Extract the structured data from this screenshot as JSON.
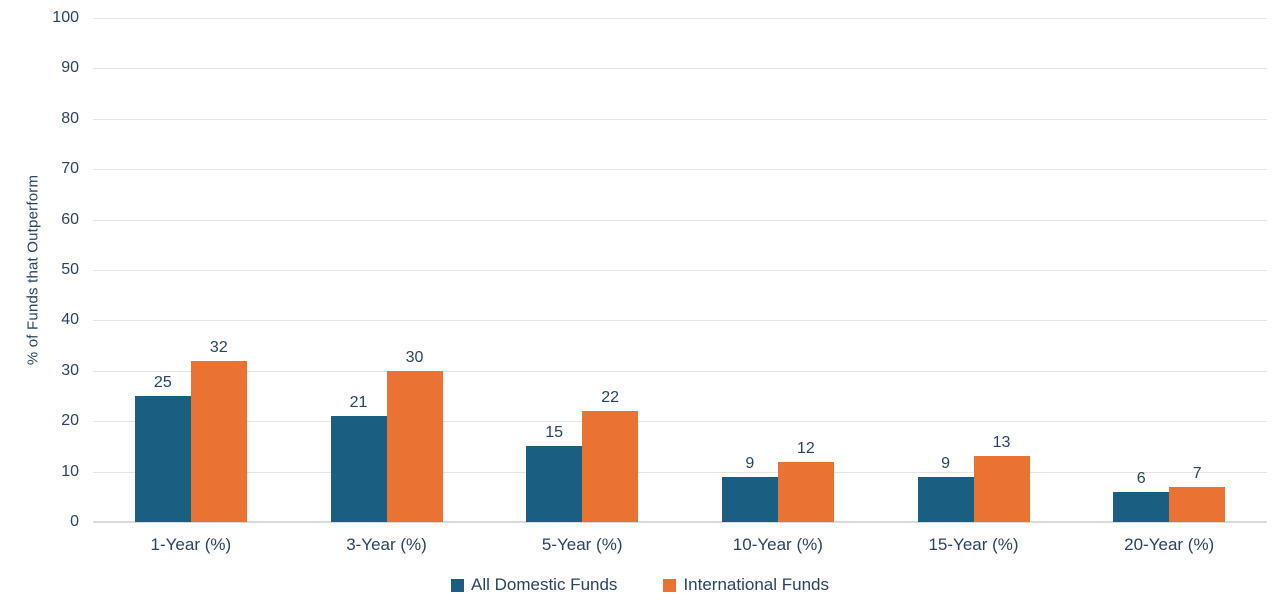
{
  "chart_data": {
    "type": "bar",
    "title": "",
    "xlabel": "",
    "ylabel": "% of Funds that Outperform",
    "ylim": [
      0,
      100
    ],
    "yticks": [
      0,
      10,
      20,
      30,
      40,
      50,
      60,
      70,
      80,
      90,
      100
    ],
    "grid": true,
    "legend_position": "bottom",
    "categories": [
      "1-Year (%)",
      "3-Year (%)",
      "5-Year (%)",
      "10-Year (%)",
      "15-Year (%)",
      "20-Year (%)"
    ],
    "series": [
      {
        "name": "All Domestic Funds",
        "color": "#1A5F82",
        "values": [
          25,
          21,
          15,
          9,
          9,
          6
        ]
      },
      {
        "name": "International Funds",
        "color": "#EA7232",
        "values": [
          32,
          30,
          22,
          12,
          13,
          7
        ]
      }
    ]
  },
  "colors": {
    "text": "#294561",
    "gridline": "#E5E5E5",
    "baseline": "#DBDBDB",
    "background": "#FFFFFF",
    "series_blue": "#1A5F82",
    "series_orange": "#EA7232"
  }
}
